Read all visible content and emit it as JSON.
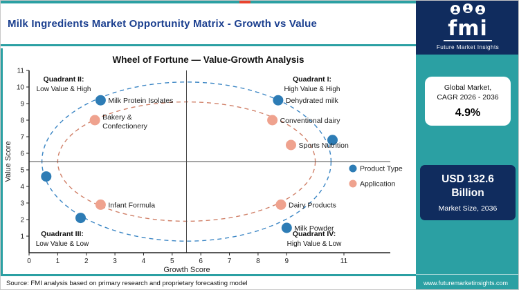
{
  "header": {
    "title": "Milk Ingredients Market Opportunity Matrix - Growth vs Value"
  },
  "branding": {
    "logo_text": "fmi",
    "logo_tagline": "Future Market Insights",
    "website": "www.futuremarketinsights.com"
  },
  "sidebar": {
    "cagr_card": {
      "line1": "Global Market,",
      "line2": "CAGR 2026 - 2036",
      "value": "4.9%"
    },
    "size_card": {
      "value": "USD 132.6 Billion",
      "label": "Market Size, 2036"
    }
  },
  "footer": {
    "source": "Source: FMI analysis based on primary research and proprietary forecasting model"
  },
  "colors": {
    "teal": "#2ba0a3",
    "navy": "#102c5e",
    "red_accent": "#e8432e",
    "title_blue": "#1b3f8f",
    "product_type": "#2d7cb5",
    "application": "#efa28e",
    "ring_blue": "#3a85c4",
    "ring_red": "#d08068"
  },
  "chart_data": {
    "type": "scatter",
    "title": "Wheel of Fortune — Value-Growth Analysis",
    "xlabel": "Growth Score",
    "ylabel": "Value Score",
    "xlim": [
      0,
      11
    ],
    "ylim": [
      0,
      11
    ],
    "grid": false,
    "legend_position": "right-middle",
    "quadrant_divider": {
      "x": 5.5,
      "y": 5.5
    },
    "x_ticks": [
      {
        "v": 0,
        "label": "0"
      },
      {
        "v": 1,
        "label": "1"
      },
      {
        "v": 2,
        "label": "2"
      },
      {
        "v": 3,
        "label": "3"
      },
      {
        "v": 4,
        "label": "4"
      },
      {
        "v": 5,
        "label": "5"
      },
      {
        "v": 6,
        "label": "6"
      },
      {
        "v": 7,
        "label": "7"
      },
      {
        "v": 8,
        "label": "8"
      },
      {
        "v": 9,
        "label": "9"
      },
      {
        "v": 11,
        "label": "11"
      }
    ],
    "y_ticks": [
      {
        "v": 1,
        "label": "1"
      },
      {
        "v": 2,
        "label": "2"
      },
      {
        "v": 3,
        "label": "3"
      },
      {
        "v": 4,
        "label": "4"
      },
      {
        "v": 5,
        "label": "5"
      },
      {
        "v": 6,
        "label": "6"
      },
      {
        "v": 7,
        "label": "7"
      },
      {
        "v": 8,
        "label": "8"
      },
      {
        "v": 9,
        "label": "9"
      },
      {
        "v": 10,
        "label": "10"
      },
      {
        "v": 11,
        "label": "11"
      }
    ],
    "quadrants": [
      {
        "name": "Quadrant II:",
        "desc": "Low Value & High",
        "position": "top-left"
      },
      {
        "name": "Quadrant I:",
        "desc": "High Value & High",
        "position": "top-right"
      },
      {
        "name": "Quadrant III:",
        "desc": "Low Value & Low",
        "position": "bottom-left"
      },
      {
        "name": "Quadrant IV:",
        "desc": "High Value & Low",
        "position": "bottom-right"
      }
    ],
    "series": [
      {
        "name": "Product Type",
        "color": "#2d7cb5",
        "points": [
          {
            "label": "Milk Protein Isolates",
            "x": 2.5,
            "y": 9.2
          },
          {
            "label": "Dehydrated milk",
            "x": 8.7,
            "y": 9.2
          },
          {
            "label": "",
            "x": 10.6,
            "y": 6.8
          },
          {
            "label": "",
            "x": 0.6,
            "y": 4.6
          },
          {
            "label": "",
            "x": 1.8,
            "y": 2.1
          },
          {
            "label": "Milk Powder",
            "x": 9.0,
            "y": 1.5
          }
        ]
      },
      {
        "name": "Application",
        "color": "#efa28e",
        "points": [
          {
            "label": "Bakery & Confectionery",
            "label_lines": [
              "Bakery &",
              "Confectionery"
            ],
            "x": 2.3,
            "y": 8.0
          },
          {
            "label": "Conventional dairy",
            "x": 8.5,
            "y": 8.0
          },
          {
            "label": "Sports Nutrition",
            "x": 9.15,
            "y": 6.5
          },
          {
            "label": "Infant Formula",
            "x": 2.5,
            "y": 2.9
          },
          {
            "label": "Dairy Products",
            "x": 8.8,
            "y": 2.9
          }
        ]
      }
    ],
    "ellipses": [
      {
        "cx": 5.5,
        "cy": 5.5,
        "rx": 5.05,
        "ry": 4.8,
        "color": "#3a85c4"
      },
      {
        "cx": 5.5,
        "cy": 5.5,
        "rx": 4.5,
        "ry": 3.6,
        "color": "#d08068"
      }
    ],
    "legend": [
      {
        "label": "Product Type",
        "color": "#2d7cb5"
      },
      {
        "label": "Application",
        "color": "#efa28e"
      }
    ]
  }
}
